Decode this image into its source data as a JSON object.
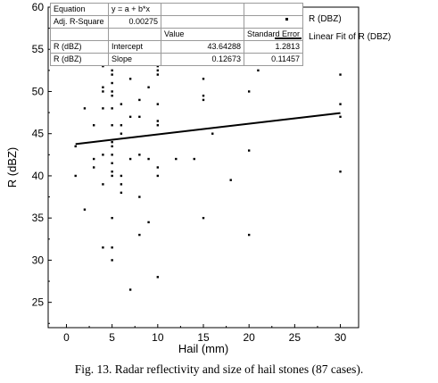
{
  "stats": {
    "rows": [
      {
        "c1": "Equation",
        "c2": "y = a + b*x",
        "c3": "",
        "c4": ""
      },
      {
        "c1": "Adj. R-Square",
        "c2": "0.00275",
        "c3": "",
        "c4": ""
      },
      {
        "c1": "",
        "c2": "",
        "c3": "Value",
        "c4": "Standard Error"
      },
      {
        "c1": "R (dBZ)",
        "c2": "Intercept",
        "c3": "43.64288",
        "c4": "1.2813"
      },
      {
        "c1": "R (dBZ)",
        "c2": "Slope",
        "c3": "0.12673",
        "c4": "0.11457"
      }
    ]
  },
  "legend": {
    "points_label": "R (DBZ)",
    "fit_label": "Linear Fit of R (DBZ)"
  },
  "caption": "Fig. 13. Radar reflectivity and size of hail stones (87 cases).",
  "chart_data": {
    "type": "scatter",
    "xlabel": "Hail (mm)",
    "ylabel": "R (dBZ)",
    "xlim": [
      -2,
      32
    ],
    "ylim": [
      22,
      60
    ],
    "xticks": [
      0,
      5,
      10,
      15,
      20,
      25,
      30
    ],
    "yticks": [
      25,
      30,
      35,
      40,
      45,
      50,
      55,
      60
    ],
    "grid": false,
    "legend_position": "top-right",
    "series": [
      {
        "name": "R (DBZ)",
        "points": [
          [
            1,
            43.5
          ],
          [
            1,
            40
          ],
          [
            2,
            48
          ],
          [
            2,
            36
          ],
          [
            3,
            46
          ],
          [
            3,
            42
          ],
          [
            3,
            41
          ],
          [
            4,
            53
          ],
          [
            4,
            50.5
          ],
          [
            4,
            50
          ],
          [
            4,
            48
          ],
          [
            4,
            42.5
          ],
          [
            4,
            39
          ],
          [
            4,
            31.5
          ],
          [
            5,
            52.5
          ],
          [
            5,
            52
          ],
          [
            5,
            51
          ],
          [
            5,
            50
          ],
          [
            5,
            49.5
          ],
          [
            5,
            48
          ],
          [
            5,
            46
          ],
          [
            5,
            44
          ],
          [
            5,
            43.5
          ],
          [
            5,
            42.5
          ],
          [
            5,
            41.5
          ],
          [
            5,
            40.5
          ],
          [
            5,
            40
          ],
          [
            5,
            35
          ],
          [
            5,
            31.5
          ],
          [
            5,
            30
          ],
          [
            6,
            48.5
          ],
          [
            6,
            46
          ],
          [
            6,
            45
          ],
          [
            6,
            40
          ],
          [
            6,
            39
          ],
          [
            6,
            38
          ],
          [
            7,
            56
          ],
          [
            7,
            51.5
          ],
          [
            7,
            47
          ],
          [
            7,
            42
          ],
          [
            7,
            26.5
          ],
          [
            8,
            49
          ],
          [
            8,
            47
          ],
          [
            8,
            42.5
          ],
          [
            8,
            37.5
          ],
          [
            8,
            33
          ],
          [
            9,
            50.5
          ],
          [
            9,
            42
          ],
          [
            9,
            34.5
          ],
          [
            10,
            55
          ],
          [
            10,
            53.5
          ],
          [
            10,
            53
          ],
          [
            10,
            52.5
          ],
          [
            10,
            52
          ],
          [
            10,
            48.5
          ],
          [
            10,
            46.5
          ],
          [
            10,
            46
          ],
          [
            10,
            41
          ],
          [
            10,
            40
          ],
          [
            10,
            28
          ],
          [
            12,
            42
          ],
          [
            14,
            42
          ],
          [
            15,
            55.5
          ],
          [
            15,
            51.5
          ],
          [
            15,
            49.5
          ],
          [
            15,
            49
          ],
          [
            15,
            35
          ],
          [
            16,
            45
          ],
          [
            18,
            39.5
          ],
          [
            20,
            50
          ],
          [
            20,
            43
          ],
          [
            20,
            33
          ],
          [
            21,
            52.5
          ],
          [
            30,
            52
          ],
          [
            30,
            48.5
          ],
          [
            30,
            47
          ],
          [
            30,
            40.5
          ]
        ]
      }
    ],
    "fit": {
      "name": "Linear Fit of R (DBZ)",
      "intercept": 43.64288,
      "slope": 0.12673,
      "x_range": [
        1,
        30
      ]
    }
  }
}
